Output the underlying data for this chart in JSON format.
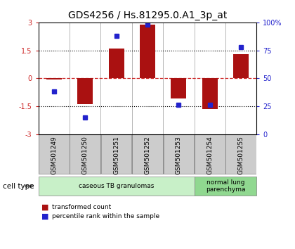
{
  "title": "GDS4256 / Hs.81295.0.A1_3p_at",
  "samples": [
    "GSM501249",
    "GSM501250",
    "GSM501251",
    "GSM501252",
    "GSM501253",
    "GSM501254",
    "GSM501255"
  ],
  "transformed_count": [
    -0.05,
    -1.4,
    1.6,
    2.9,
    -1.1,
    -1.65,
    1.3
  ],
  "percentile_rank": [
    38,
    15,
    88,
    98,
    26,
    26,
    78
  ],
  "bar_color": "#aa1111",
  "dot_color": "#2222cc",
  "ylim_left": [
    -3,
    3
  ],
  "yticks_left": [
    -3,
    -1.5,
    0,
    1.5,
    3
  ],
  "ytick_labels_left": [
    "-3",
    "-1.5",
    "0",
    "1.5",
    "3"
  ],
  "ylim_right": [
    0,
    100
  ],
  "yticks_right": [
    0,
    25,
    50,
    75,
    100
  ],
  "ytick_labels_right": [
    "0",
    "25",
    "50",
    "75",
    "100%"
  ],
  "hlines_dotted": [
    -1.5,
    1.5
  ],
  "hline_red_dashed": 0,
  "cell_type_groups": [
    {
      "label": "caseous TB granulomas",
      "samples": [
        "GSM501249",
        "GSM501250",
        "GSM501251",
        "GSM501252",
        "GSM501253"
      ],
      "color": "#c8f0c8"
    },
    {
      "label": "normal lung\nparenchyma",
      "samples": [
        "GSM501254",
        "GSM501255"
      ],
      "color": "#90d890"
    }
  ],
  "legend_red_label": "transformed count",
  "legend_blue_label": "percentile rank within the sample",
  "cell_type_label": "cell type",
  "bg_color": "#ffffff",
  "plot_bg_color": "#ffffff",
  "tick_label_fontsize": 7,
  "title_fontsize": 10
}
